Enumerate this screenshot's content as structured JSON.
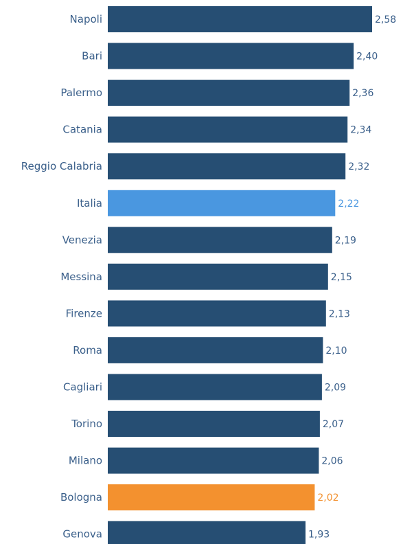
{
  "chart_data": {
    "type": "bar",
    "orientation": "horizontal",
    "categories": [
      "Napoli",
      "Bari",
      "Palermo",
      "Catania",
      "Reggio Calabria",
      "Italia",
      "Venezia",
      "Messina",
      "Firenze",
      "Roma",
      "Cagliari",
      "Torino",
      "Milano",
      "Bologna",
      "Genova"
    ],
    "values": [
      2.58,
      2.4,
      2.36,
      2.34,
      2.32,
      2.22,
      2.19,
      2.15,
      2.13,
      2.1,
      2.09,
      2.07,
      2.06,
      2.02,
      1.93
    ],
    "value_labels": [
      "2,58",
      "2,40",
      "2,36",
      "2,34",
      "2,32",
      "2,22",
      "2,19",
      "2,15",
      "2,13",
      "2,10",
      "2,09",
      "2,07",
      "2,06",
      "2,02",
      "1,93"
    ],
    "xlim": [
      0,
      2.58
    ],
    "grid": false,
    "colors": {
      "default_bar": "#264e73",
      "highlight_italia": "#4a97e0",
      "highlight_bologna": "#f3912f",
      "category_text": "#3a5f8a",
      "value_text": "#3a5f8a"
    },
    "highlights": {
      "Italia": "highlight_italia",
      "Bologna": "highlight_bologna"
    }
  }
}
